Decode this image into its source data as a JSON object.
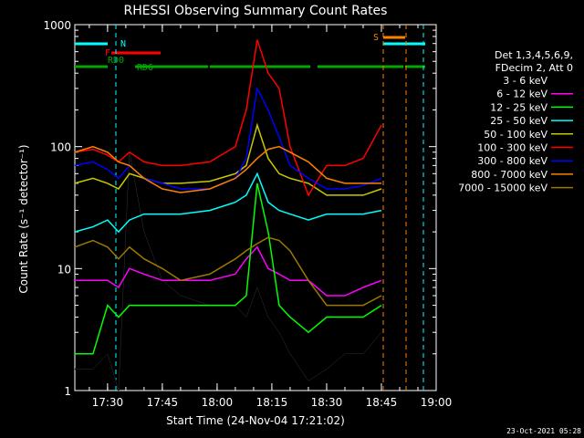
{
  "chart_data": {
    "type": "line",
    "title": "RHESSI Observing Summary Count Rates",
    "xlabel": "Start Time (24-Nov-04 17:21:02)",
    "ylabel": "Count Rate (s⁻¹ detector⁻¹)",
    "yscale": "log",
    "ylim": [
      1,
      1000
    ],
    "xlim": [
      "17:21:02",
      "19:00"
    ],
    "x_ticks": [
      "17:30",
      "17:45",
      "18:00",
      "18:15",
      "18:30",
      "18:45",
      "19:00"
    ],
    "y_ticks": [
      "1",
      "10",
      "100",
      "1000"
    ],
    "grid": false,
    "legend_position": "right",
    "legend_header": [
      "Det 1,3,4,5,6,9,",
      "FDecim 2, Att 0"
    ],
    "timestamp": "23-Oct-2021 05:28",
    "flags": [
      {
        "label": "N",
        "color": "#00ffff"
      },
      {
        "label": "F",
        "color": "#ff0000"
      },
      {
        "label": "RD0",
        "color": "#00aa00"
      },
      {
        "label": "RD6",
        "color": "#00aa00"
      },
      {
        "label": "S",
        "color": "#ff8000"
      }
    ],
    "series": [
      {
        "name": "3 - 6 keV",
        "color": "#000000",
        "x": [
          "17:21",
          "17:26",
          "17:30",
          "17:33",
          "17:36",
          "17:40",
          "17:45",
          "17:50",
          "17:58",
          "18:05",
          "18:08",
          "18:11",
          "18:14",
          "18:17",
          "18:20",
          "18:25",
          "18:30",
          "18:35",
          "18:40",
          "18:45"
        ],
        "y": [
          1.5,
          1.5,
          2,
          1,
          90,
          20,
          8,
          6,
          5,
          5,
          4,
          7,
          4,
          3,
          2,
          1.2,
          1.5,
          2,
          2,
          3
        ]
      },
      {
        "name": "6 - 12 keV",
        "color": "#ff00ff",
        "x": [
          "17:21",
          "17:26",
          "17:30",
          "17:33",
          "17:36",
          "17:40",
          "17:45",
          "17:50",
          "17:58",
          "18:05",
          "18:08",
          "18:11",
          "18:14",
          "18:17",
          "18:20",
          "18:25",
          "18:30",
          "18:35",
          "18:40",
          "18:45"
        ],
        "y": [
          8,
          8,
          8,
          7,
          10,
          9,
          8,
          8,
          8,
          9,
          12,
          15,
          10,
          9,
          8,
          8,
          6,
          6,
          7,
          8
        ]
      },
      {
        "name": "12 - 25 keV",
        "color": "#00ff00",
        "x": [
          "17:21",
          "17:26",
          "17:30",
          "17:33",
          "17:36",
          "17:40",
          "17:45",
          "17:50",
          "17:58",
          "18:05",
          "18:08",
          "18:11",
          "18:14",
          "18:17",
          "18:20",
          "18:25",
          "18:30",
          "18:35",
          "18:40",
          "18:45"
        ],
        "y": [
          2,
          2,
          5,
          4,
          5,
          5,
          5,
          5,
          5,
          5,
          6,
          50,
          20,
          5,
          4,
          3,
          4,
          4,
          4,
          5
        ]
      },
      {
        "name": "25 - 50 keV",
        "color": "#00ffff",
        "x": [
          "17:21",
          "17:26",
          "17:30",
          "17:33",
          "17:36",
          "17:40",
          "17:45",
          "17:50",
          "17:58",
          "18:05",
          "18:08",
          "18:11",
          "18:14",
          "18:17",
          "18:20",
          "18:25",
          "18:30",
          "18:35",
          "18:40",
          "18:45"
        ],
        "y": [
          20,
          22,
          25,
          20,
          25,
          28,
          28,
          28,
          30,
          35,
          40,
          60,
          35,
          30,
          28,
          25,
          28,
          28,
          28,
          30
        ]
      },
      {
        "name": "50 - 100 keV",
        "color": "#c8c800",
        "x": [
          "17:21",
          "17:26",
          "17:30",
          "17:33",
          "17:36",
          "17:40",
          "17:45",
          "17:50",
          "17:58",
          "18:05",
          "18:08",
          "18:11",
          "18:14",
          "18:17",
          "18:20",
          "18:25",
          "18:30",
          "18:35",
          "18:40",
          "18:45"
        ],
        "y": [
          50,
          55,
          50,
          45,
          60,
          55,
          50,
          50,
          52,
          60,
          70,
          150,
          80,
          60,
          55,
          50,
          40,
          40,
          40,
          45
        ]
      },
      {
        "name": "100 - 300 keV",
        "color": "#ff0000",
        "x": [
          "17:21",
          "17:26",
          "17:30",
          "17:33",
          "17:36",
          "17:40",
          "17:45",
          "17:50",
          "17:58",
          "18:05",
          "18:08",
          "18:11",
          "18:14",
          "18:17",
          "18:20",
          "18:25",
          "18:30",
          "18:35",
          "18:40",
          "18:45"
        ],
        "y": [
          90,
          95,
          85,
          75,
          90,
          75,
          70,
          70,
          75,
          100,
          200,
          750,
          400,
          300,
          100,
          40,
          70,
          70,
          80,
          150
        ]
      },
      {
        "name": "300 - 800 keV",
        "color": "#0000ff",
        "x": [
          "17:21",
          "17:26",
          "17:30",
          "17:33",
          "17:36",
          "17:40",
          "17:45",
          "17:50",
          "17:58",
          "18:05",
          "18:08",
          "18:11",
          "18:14",
          "18:17",
          "18:20",
          "18:25",
          "18:30",
          "18:35",
          "18:40",
          "18:45"
        ],
        "y": [
          70,
          75,
          65,
          55,
          70,
          55,
          50,
          45,
          45,
          55,
          80,
          300,
          200,
          120,
          70,
          55,
          45,
          45,
          48,
          55
        ]
      },
      {
        "name": "800 - 7000 keV",
        "color": "#ff8000",
        "x": [
          "17:21",
          "17:26",
          "17:30",
          "17:33",
          "17:36",
          "17:40",
          "17:45",
          "17:50",
          "17:58",
          "18:05",
          "18:08",
          "18:11",
          "18:14",
          "18:17",
          "18:20",
          "18:25",
          "18:30",
          "18:35",
          "18:40",
          "18:45"
        ],
        "y": [
          90,
          100,
          90,
          75,
          70,
          55,
          45,
          42,
          45,
          55,
          65,
          80,
          95,
          100,
          90,
          75,
          55,
          50,
          50,
          50
        ]
      },
      {
        "name": "7000 - 15000 keV",
        "color": "#9a7a00",
        "x": [
          "17:21",
          "17:26",
          "17:30",
          "17:33",
          "17:36",
          "17:40",
          "17:45",
          "17:50",
          "17:58",
          "18:05",
          "18:08",
          "18:11",
          "18:14",
          "18:17",
          "18:20",
          "18:25",
          "18:30",
          "18:35",
          "18:40",
          "18:45"
        ],
        "y": [
          15,
          17,
          15,
          12,
          15,
          12,
          10,
          8,
          9,
          12,
          14,
          16,
          18,
          17,
          14,
          8,
          5,
          5,
          5,
          6
        ]
      }
    ]
  }
}
